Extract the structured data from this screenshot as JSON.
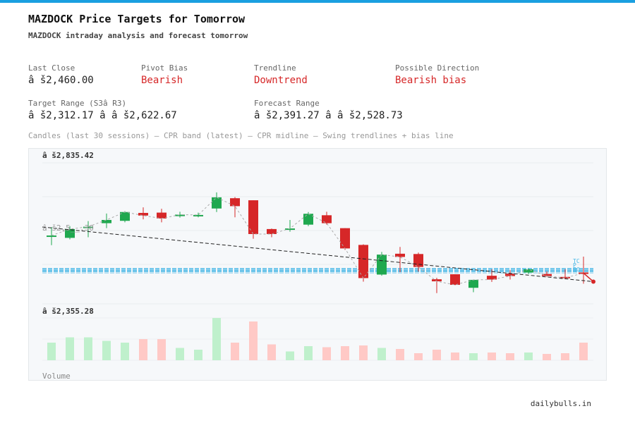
{
  "header": {
    "title": "MAZDOCK Price Targets for Tomorrow",
    "subtitle": "MAZDOCK intraday analysis and forecast tomorrow"
  },
  "stats": {
    "last_close": {
      "label": "Last Close",
      "value": "â š2,460.00"
    },
    "pivot_bias": {
      "label": "Pivot Bias",
      "value": "Bearish"
    },
    "trendline": {
      "label": "Trendline",
      "value": "Downtrend"
    },
    "possible_direction": {
      "label": "Possible Direction",
      "value": "Bearish bias"
    },
    "target_range": {
      "label": "Target Range (S3â  R3)",
      "value": "â š2,312.17 â   â š2,622.67"
    },
    "forecast_range": {
      "label": "Forecast Range",
      "value": "â š2,391.27 â   â š2,528.73"
    }
  },
  "chart_note": "Candles (last 30 sessions) – CPR band (latest) – CPR midline – Swing trendlines + bias line",
  "footer": {
    "brand": "dailybulls.in"
  },
  "colors": {
    "accent": "#1a9fe0",
    "bull": "#1fa84f",
    "bear": "#d62728",
    "vol_bull": "#bff0cc",
    "vol_bear": "#ffc9c6",
    "cpr": "#48b7e6"
  },
  "chart_data": {
    "type": "candlestick",
    "price_axis_labels": {
      "top": "â š2,835.42",
      "mid": "â š2,5__.30",
      "bottom": "â š2,355.28"
    },
    "price_range": [
      2355.28,
      2835.42
    ],
    "volume_label": "Volume",
    "cpr_labels": [
      "TC",
      "P",
      "BC"
    ],
    "candles": [
      {
        "open": 2585,
        "high": 2617,
        "low": 2555,
        "close": 2588
      },
      {
        "open": 2580,
        "high": 2620,
        "low": 2575,
        "close": 2610
      },
      {
        "open": 2615,
        "high": 2637,
        "low": 2582,
        "close": 2618
      },
      {
        "open": 2630,
        "high": 2663,
        "low": 2613,
        "close": 2641
      },
      {
        "open": 2638,
        "high": 2671,
        "low": 2633,
        "close": 2668
      },
      {
        "open": 2665,
        "high": 2684,
        "low": 2643,
        "close": 2656
      },
      {
        "open": 2666,
        "high": 2679,
        "low": 2633,
        "close": 2646
      },
      {
        "open": 2654,
        "high": 2669,
        "low": 2649,
        "close": 2659
      },
      {
        "open": 2654,
        "high": 2666,
        "low": 2650,
        "close": 2658
      },
      {
        "open": 2680,
        "high": 2735,
        "low": 2668,
        "close": 2718
      },
      {
        "open": 2715,
        "high": 2719,
        "low": 2650,
        "close": 2688
      },
      {
        "open": 2708,
        "high": 2708,
        "low": 2577,
        "close": 2593
      },
      {
        "open": 2610,
        "high": 2612,
        "low": 2582,
        "close": 2593
      },
      {
        "open": 2611,
        "high": 2641,
        "low": 2601,
        "close": 2612
      },
      {
        "open": 2625,
        "high": 2668,
        "low": 2620,
        "close": 2662
      },
      {
        "open": 2657,
        "high": 2669,
        "low": 2625,
        "close": 2630
      },
      {
        "open": 2613,
        "high": 2613,
        "low": 2539,
        "close": 2544
      },
      {
        "open": 2556,
        "high": 2558,
        "low": 2431,
        "close": 2443
      },
      {
        "open": 2455,
        "high": 2532,
        "low": 2451,
        "close": 2523
      },
      {
        "open": 2526,
        "high": 2549,
        "low": 2463,
        "close": 2515
      },
      {
        "open": 2525,
        "high": 2530,
        "low": 2465,
        "close": 2481
      },
      {
        "open": 2439,
        "high": 2444,
        "low": 2392,
        "close": 2432
      },
      {
        "open": 2456,
        "high": 2456,
        "low": 2419,
        "close": 2420
      },
      {
        "open": 2410,
        "high": 2437,
        "low": 2395,
        "close": 2437
      },
      {
        "open": 2451,
        "high": 2473,
        "low": 2430,
        "close": 2438
      },
      {
        "open": 2458,
        "high": 2470,
        "low": 2438,
        "close": 2450
      },
      {
        "open": 2462,
        "high": 2476,
        "low": 2457,
        "close": 2473
      },
      {
        "open": 2457,
        "high": 2466,
        "low": 2447,
        "close": 2450
      },
      {
        "open": 2447,
        "high": 2473,
        "low": 2439,
        "close": 2444
      },
      {
        "open": 2462,
        "high": 2516,
        "low": 2424,
        "close": 2460
      }
    ],
    "volume": [
      50,
      65,
      65,
      55,
      50,
      60,
      60,
      35,
      30,
      120,
      50,
      110,
      45,
      25,
      40,
      37,
      40,
      42,
      35,
      32,
      20,
      30,
      22,
      20,
      22,
      20,
      22,
      18,
      20,
      50
    ],
    "cpr": {
      "tc": 2475,
      "pivot": 2470,
      "bc": 2465
    },
    "trendline": {
      "start": 2617,
      "end": 2431
    },
    "bias_end": 2431
  }
}
